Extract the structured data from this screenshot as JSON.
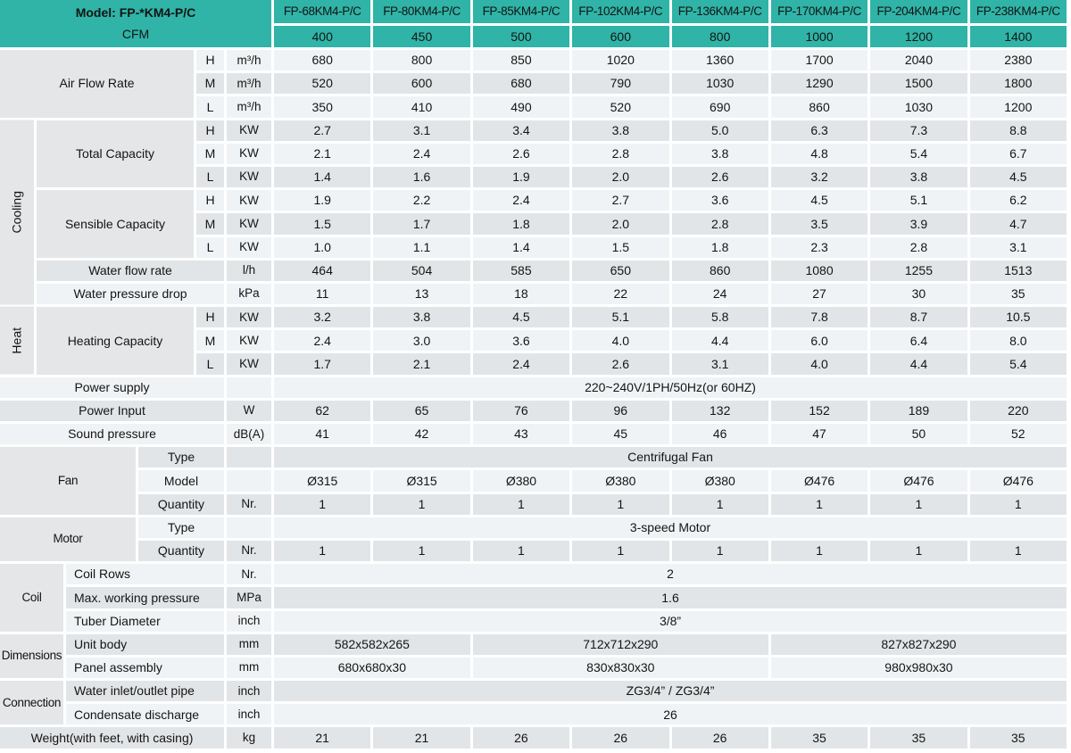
{
  "title": "Fan coil unit specification table",
  "colors": {
    "accent_teal": "#2fb4a7",
    "row_light": "#f0f3f5",
    "row_gray": "#e2e5e7",
    "label_gray": "#e4e6e8",
    "grid_line": "#ffffff",
    "text": "#141414"
  },
  "grid": {
    "cells": [
      {
        "n": "model-cfm-block",
        "k": "teal2",
        "t": "Model: FP-*KM4-P/C",
        "t2": "CFM",
        "c": 1,
        "cs": 6,
        "r": 1,
        "rs": 2
      },
      {
        "n": "model-header-1",
        "k": "mh",
        "t": "FP-68KM4-P/C",
        "c": 7,
        "r": 1
      },
      {
        "n": "model-header-2",
        "k": "mh",
        "t": "FP-80KM4-P/C",
        "c": 8,
        "r": 1
      },
      {
        "n": "model-header-3",
        "k": "mh",
        "t": "FP-85KM4-P/C",
        "c": 9,
        "r": 1
      },
      {
        "n": "model-header-4",
        "k": "mh",
        "t": "FP-102KM4-P/C",
        "c": 10,
        "r": 1
      },
      {
        "n": "model-header-5",
        "k": "mh",
        "t": "FP-136KM4-P/C",
        "c": 11,
        "r": 1
      },
      {
        "n": "model-header-6",
        "k": "mh",
        "t": "FP-170KM4-P/C",
        "c": 12,
        "r": 1
      },
      {
        "n": "model-header-7",
        "k": "mh",
        "t": "FP-204KM4-P/C",
        "c": 13,
        "r": 1
      },
      {
        "n": "model-header-8",
        "k": "mh",
        "t": "FP-238KM4-P/C",
        "c": 14,
        "r": 1
      },
      {
        "n": "cfm-value-1",
        "k": "cfm",
        "t": "400",
        "c": 7,
        "r": 2
      },
      {
        "n": "cfm-value-2",
        "k": "cfm",
        "t": "450",
        "c": 8,
        "r": 2
      },
      {
        "n": "cfm-value-3",
        "k": "cfm",
        "t": "500",
        "c": 9,
        "r": 2
      },
      {
        "n": "cfm-value-4",
        "k": "cfm",
        "t": "600",
        "c": 10,
        "r": 2
      },
      {
        "n": "cfm-value-5",
        "k": "cfm",
        "t": "800",
        "c": 11,
        "r": 2
      },
      {
        "n": "cfm-value-6",
        "k": "cfm",
        "t": "1000",
        "c": 12,
        "r": 2
      },
      {
        "n": "cfm-value-7",
        "k": "cfm",
        "t": "1200",
        "c": 13,
        "r": 2
      },
      {
        "n": "cfm-value-8",
        "k": "cfm",
        "t": "1400",
        "c": 14,
        "r": 2
      },
      {
        "n": "label-air-flow-rate",
        "k": "label",
        "t": "Air Flow Rate",
        "c": 1,
        "cs": 4,
        "r": 3,
        "rs": 3
      },
      {
        "n": "speed-h",
        "k": "hml",
        "t": "H",
        "c": 5,
        "r": 3
      },
      {
        "n": "speed-m",
        "k": "hml",
        "t": "M",
        "c": 5,
        "r": 4
      },
      {
        "n": "speed-l",
        "k": "hml",
        "t": "L",
        "c": 5,
        "r": 5
      },
      {
        "n": "unit-m3h-1",
        "k": "unit",
        "t": "m³/h",
        "c": 6,
        "r": 3
      },
      {
        "n": "unit-m3h-2",
        "k": "unit",
        "t": "m³/h",
        "c": 6,
        "r": 4
      },
      {
        "n": "unit-m3h-3",
        "k": "unit",
        "t": "m³/h",
        "c": 6,
        "r": 5
      },
      {
        "n": "group-cooling",
        "k": "vgroup",
        "t": "Cooling",
        "c": 1,
        "r": 6,
        "rs": 8
      },
      {
        "n": "label-total-capacity",
        "k": "label",
        "t": "Total Capacity",
        "c": 2,
        "cs": 3,
        "r": 6,
        "rs": 3
      },
      {
        "n": "label-sensible-capacity",
        "k": "label",
        "t": "Sensible Capacity",
        "c": 2,
        "cs": 3,
        "r": 9,
        "rs": 3
      },
      {
        "n": "speed-h",
        "k": "hml",
        "t": "H",
        "c": 5,
        "r": 6
      },
      {
        "n": "speed-m",
        "k": "hml",
        "t": "M",
        "c": 5,
        "r": 7
      },
      {
        "n": "speed-l",
        "k": "hml",
        "t": "L",
        "c": 5,
        "r": 8
      },
      {
        "n": "speed-h",
        "k": "hml",
        "t": "H",
        "c": 5,
        "r": 9
      },
      {
        "n": "speed-m",
        "k": "hml",
        "t": "M",
        "c": 5,
        "r": 10
      },
      {
        "n": "speed-l",
        "k": "hml",
        "t": "L",
        "c": 5,
        "r": 11
      },
      {
        "n": "unit-kw",
        "k": "unit",
        "t": "KW",
        "c": 6,
        "r": 6
      },
      {
        "n": "unit-kw",
        "k": "unit",
        "t": "KW",
        "c": 6,
        "r": 7
      },
      {
        "n": "unit-kw",
        "k": "unit",
        "t": "KW",
        "c": 6,
        "r": 8
      },
      {
        "n": "unit-kw",
        "k": "unit",
        "t": "KW",
        "c": 6,
        "r": 9
      },
      {
        "n": "unit-kw",
        "k": "unit",
        "t": "KW",
        "c": 6,
        "r": 10
      },
      {
        "n": "unit-kw",
        "k": "unit",
        "t": "KW",
        "c": 6,
        "r": 11
      },
      {
        "n": "label-water-flow-rate",
        "k": "label",
        "t": "Water flow rate",
        "c": 2,
        "cs": 4,
        "r": 12
      },
      {
        "n": "unit-lh",
        "k": "unit",
        "t": "l/h",
        "c": 6,
        "r": 12
      },
      {
        "n": "label-water-pressure-drop",
        "k": "label",
        "t": "Water pressure drop",
        "c": 2,
        "cs": 4,
        "r": 13
      },
      {
        "n": "unit-kpa",
        "k": "unit",
        "t": "kPa",
        "c": 6,
        "r": 13
      },
      {
        "n": "group-heat",
        "k": "vgroup",
        "t": "Heat",
        "c": 1,
        "r": 14,
        "rs": 3
      },
      {
        "n": "label-heating-capacity",
        "k": "label",
        "t": "Heating Capacity",
        "c": 2,
        "cs": 3,
        "r": 14,
        "rs": 3
      },
      {
        "n": "speed-h",
        "k": "hml",
        "t": "H",
        "c": 5,
        "r": 14
      },
      {
        "n": "speed-m",
        "k": "hml",
        "t": "M",
        "c": 5,
        "r": 15
      },
      {
        "n": "speed-l",
        "k": "hml",
        "t": "L",
        "c": 5,
        "r": 16
      },
      {
        "n": "unit-kw",
        "k": "unit",
        "t": "KW",
        "c": 6,
        "r": 14
      },
      {
        "n": "unit-kw",
        "k": "unit",
        "t": "KW",
        "c": 6,
        "r": 15
      },
      {
        "n": "unit-kw",
        "k": "unit",
        "t": "KW",
        "c": 6,
        "r": 16
      },
      {
        "n": "label-power-supply",
        "k": "label",
        "t": "Power supply",
        "c": 1,
        "cs": 5,
        "r": 17
      },
      {
        "n": "unit-blank",
        "k": "unit",
        "t": "",
        "c": 6,
        "r": 17
      },
      {
        "n": "power-supply-value",
        "k": "dataM",
        "t": "220~240V/1PH/50Hz(or 60HZ)",
        "c": 7,
        "cs": 8,
        "r": 17
      },
      {
        "n": "label-power-input",
        "k": "label",
        "t": "Power Input",
        "c": 1,
        "cs": 5,
        "r": 18
      },
      {
        "n": "unit-w",
        "k": "unit",
        "t": "W",
        "c": 6,
        "r": 18
      },
      {
        "n": "label-sound-pressure",
        "k": "label",
        "t": "Sound pressure",
        "c": 1,
        "cs": 5,
        "r": 19
      },
      {
        "n": "unit-dba",
        "k": "unit",
        "t": "dB(A)",
        "c": 6,
        "r": 19
      },
      {
        "n": "group-fan",
        "k": "group",
        "t": "Fan",
        "c": 1,
        "cs": 3,
        "r": 20,
        "rs": 3
      },
      {
        "n": "label-fan-type",
        "k": "label",
        "t": "Type",
        "c": 4,
        "cs": 2,
        "r": 20
      },
      {
        "n": "unit-blank",
        "k": "unit",
        "t": "",
        "c": 6,
        "r": 20
      },
      {
        "n": "fan-type-value",
        "k": "dataM",
        "t": "Centrifugal Fan",
        "c": 7,
        "cs": 8,
        "r": 20
      },
      {
        "n": "label-fan-model",
        "k": "label",
        "t": "Model",
        "c": 4,
        "cs": 2,
        "r": 21
      },
      {
        "n": "unit-blank",
        "k": "unit",
        "t": "",
        "c": 6,
        "r": 21
      },
      {
        "n": "label-fan-quantity",
        "k": "label",
        "t": "Quantity",
        "c": 4,
        "cs": 2,
        "r": 22
      },
      {
        "n": "unit-nr",
        "k": "unit",
        "t": "Nr.",
        "c": 6,
        "r": 22
      },
      {
        "n": "group-motor",
        "k": "group",
        "t": "Motor",
        "c": 1,
        "cs": 3,
        "r": 23,
        "rs": 2
      },
      {
        "n": "label-motor-type",
        "k": "label",
        "t": "Type",
        "c": 4,
        "cs": 2,
        "r": 23
      },
      {
        "n": "unit-blank",
        "k": "unit",
        "t": "",
        "c": 6,
        "r": 23
      },
      {
        "n": "motor-type-value",
        "k": "dataM",
        "t": "3-speed Motor",
        "c": 7,
        "cs": 8,
        "r": 23
      },
      {
        "n": "label-motor-quantity",
        "k": "label",
        "t": "Quantity",
        "c": 4,
        "cs": 2,
        "r": 24
      },
      {
        "n": "unit-nr",
        "k": "unit",
        "t": "Nr.",
        "c": 6,
        "r": 24
      },
      {
        "n": "group-coil",
        "k": "group",
        "t": "Coil",
        "c": 1,
        "cs": 2,
        "r": 25,
        "rs": 3
      },
      {
        "n": "label-coil-rows",
        "k": "labelL",
        "t": "Coil Rows",
        "c": 3,
        "cs": 3,
        "r": 25
      },
      {
        "n": "unit-nr",
        "k": "unit",
        "t": "Nr.",
        "c": 6,
        "r": 25
      },
      {
        "n": "coil-rows-value",
        "k": "dataM",
        "t": "2",
        "c": 7,
        "cs": 8,
        "r": 25
      },
      {
        "n": "label-max-working-pressure",
        "k": "labelL",
        "t": "Max. working pressure",
        "c": 3,
        "cs": 3,
        "r": 26
      },
      {
        "n": "unit-mpa",
        "k": "unit",
        "t": "MPa",
        "c": 6,
        "r": 26
      },
      {
        "n": "max-working-pressure-value",
        "k": "dataM",
        "t": "1.6",
        "c": 7,
        "cs": 8,
        "r": 26
      },
      {
        "n": "label-tuber-diameter",
        "k": "labelL",
        "t": "Tuber Diameter",
        "c": 3,
        "cs": 3,
        "r": 27
      },
      {
        "n": "unit-inch",
        "k": "unit",
        "t": "inch",
        "c": 6,
        "r": 27
      },
      {
        "n": "tuber-diameter-value",
        "k": "dataM",
        "t": "3/8”",
        "c": 7,
        "cs": 8,
        "r": 27
      },
      {
        "n": "group-dimensions",
        "k": "group",
        "t": "Dimensions",
        "c": 1,
        "cs": 2,
        "r": 28,
        "rs": 2
      },
      {
        "n": "label-unit-body",
        "k": "labelL",
        "t": "Unit body",
        "c": 3,
        "cs": 3,
        "r": 28
      },
      {
        "n": "unit-mm",
        "k": "unit",
        "t": "mm",
        "c": 6,
        "r": 28
      },
      {
        "n": "unit-body-size-1",
        "k": "dataM",
        "t": "582x582x265",
        "c": 7,
        "cs": 2,
        "r": 28
      },
      {
        "n": "unit-body-size-2",
        "k": "dataM",
        "t": "712x712x290",
        "c": 9,
        "cs": 3,
        "r": 28
      },
      {
        "n": "unit-body-size-3",
        "k": "dataM",
        "t": "827x827x290",
        "c": 12,
        "cs": 3,
        "r": 28
      },
      {
        "n": "label-panel-assembly",
        "k": "labelL",
        "t": "Panel assembly",
        "c": 3,
        "cs": 3,
        "r": 29
      },
      {
        "n": "unit-mm",
        "k": "unit",
        "t": "mm",
        "c": 6,
        "r": 29
      },
      {
        "n": "panel-assembly-size-1",
        "k": "dataM",
        "t": "680x680x30",
        "c": 7,
        "cs": 2,
        "r": 29
      },
      {
        "n": "panel-assembly-size-2",
        "k": "dataM",
        "t": "830x830x30",
        "c": 9,
        "cs": 3,
        "r": 29
      },
      {
        "n": "panel-assembly-size-3",
        "k": "dataM",
        "t": "980x980x30",
        "c": 12,
        "cs": 3,
        "r": 29
      },
      {
        "n": "group-connection",
        "k": "group",
        "t": "Connection",
        "c": 1,
        "cs": 2,
        "r": 30,
        "rs": 2
      },
      {
        "n": "label-water-inlet-outlet-pipe",
        "k": "labelL",
        "t": "Water inlet/outlet pipe",
        "c": 3,
        "cs": 3,
        "r": 30
      },
      {
        "n": "unit-inch",
        "k": "unit",
        "t": "inch",
        "c": 6,
        "r": 30
      },
      {
        "n": "water-pipe-value",
        "k": "dataM",
        "t": "ZG3/4” / ZG3/4”",
        "c": 7,
        "cs": 8,
        "r": 30
      },
      {
        "n": "label-condensate-discharge",
        "k": "labelL",
        "t": "Condensate discharge",
        "c": 3,
        "cs": 3,
        "r": 31
      },
      {
        "n": "unit-inch",
        "k": "unit",
        "t": "inch",
        "c": 6,
        "r": 31
      },
      {
        "n": "condensate-discharge-value",
        "k": "dataM",
        "t": "26",
        "c": 7,
        "cs": 8,
        "r": 31
      },
      {
        "n": "label-weight",
        "k": "label",
        "t": "Weight(with feet, with casing)",
        "c": 1,
        "cs": 5,
        "r": 32
      },
      {
        "n": "unit-kg",
        "k": "unit",
        "t": "kg",
        "c": 6,
        "r": 32
      }
    ]
  },
  "data_rows": [
    {
      "name": "air-flow-rate-h",
      "r": 3,
      "values": [
        "680",
        "800",
        "850",
        "1020",
        "1360",
        "1700",
        "2040",
        "2380"
      ]
    },
    {
      "name": "air-flow-rate-m",
      "r": 4,
      "values": [
        "520",
        "600",
        "680",
        "790",
        "1030",
        "1290",
        "1500",
        "1800"
      ]
    },
    {
      "name": "air-flow-rate-l",
      "r": 5,
      "values": [
        "350",
        "410",
        "490",
        "520",
        "690",
        "860",
        "1030",
        "1200"
      ]
    },
    {
      "name": "total-capacity-h",
      "r": 6,
      "values": [
        "2.7",
        "3.1",
        "3.4",
        "3.8",
        "5.0",
        "6.3",
        "7.3",
        "8.8"
      ]
    },
    {
      "name": "total-capacity-m",
      "r": 7,
      "values": [
        "2.1",
        "2.4",
        "2.6",
        "2.8",
        "3.8",
        "4.8",
        "5.4",
        "6.7"
      ]
    },
    {
      "name": "total-capacity-l",
      "r": 8,
      "values": [
        "1.4",
        "1.6",
        "1.9",
        "2.0",
        "2.6",
        "3.2",
        "3.8",
        "4.5"
      ]
    },
    {
      "name": "sensible-capacity-h",
      "r": 9,
      "values": [
        "1.9",
        "2.2",
        "2.4",
        "2.7",
        "3.6",
        "4.5",
        "5.1",
        "6.2"
      ]
    },
    {
      "name": "sensible-capacity-m",
      "r": 10,
      "values": [
        "1.5",
        "1.7",
        "1.8",
        "2.0",
        "2.8",
        "3.5",
        "3.9",
        "4.7"
      ]
    },
    {
      "name": "sensible-capacity-l",
      "r": 11,
      "values": [
        "1.0",
        "1.1",
        "1.4",
        "1.5",
        "1.8",
        "2.3",
        "2.8",
        "3.1"
      ]
    },
    {
      "name": "water-flow-rate",
      "r": 12,
      "values": [
        "464",
        "504",
        "585",
        "650",
        "860",
        "1080",
        "1255",
        "1513"
      ]
    },
    {
      "name": "water-pressure-drop",
      "r": 13,
      "values": [
        "11",
        "13",
        "18",
        "22",
        "24",
        "27",
        "30",
        "35"
      ]
    },
    {
      "name": "heating-capacity-h",
      "r": 14,
      "values": [
        "3.2",
        "3.8",
        "4.5",
        "5.1",
        "5.8",
        "7.8",
        "8.7",
        "10.5"
      ]
    },
    {
      "name": "heating-capacity-m",
      "r": 15,
      "values": [
        "2.4",
        "3.0",
        "3.6",
        "4.0",
        "4.4",
        "6.0",
        "6.4",
        "8.0"
      ]
    },
    {
      "name": "heating-capacity-l",
      "r": 16,
      "values": [
        "1.7",
        "2.1",
        "2.4",
        "2.6",
        "3.1",
        "4.0",
        "4.4",
        "5.4"
      ]
    },
    {
      "name": "power-input",
      "r": 18,
      "values": [
        "62",
        "65",
        "76",
        "96",
        "132",
        "152",
        "189",
        "220"
      ]
    },
    {
      "name": "sound-pressure",
      "r": 19,
      "values": [
        "41",
        "42",
        "43",
        "45",
        "46",
        "47",
        "50",
        "52"
      ]
    },
    {
      "name": "fan-model",
      "r": 21,
      "values": [
        "Ø315",
        "Ø315",
        "Ø380",
        "Ø380",
        "Ø380",
        "Ø476",
        "Ø476",
        "Ø476"
      ]
    },
    {
      "name": "fan-quantity",
      "r": 22,
      "values": [
        "1",
        "1",
        "1",
        "1",
        "1",
        "1",
        "1",
        "1"
      ]
    },
    {
      "name": "motor-quantity",
      "r": 24,
      "values": [
        "1",
        "1",
        "1",
        "1",
        "1",
        "1",
        "1",
        "1"
      ]
    },
    {
      "name": "weight",
      "r": 32,
      "values": [
        "21",
        "21",
        "26",
        "26",
        "26",
        "35",
        "35",
        "35"
      ]
    }
  ]
}
